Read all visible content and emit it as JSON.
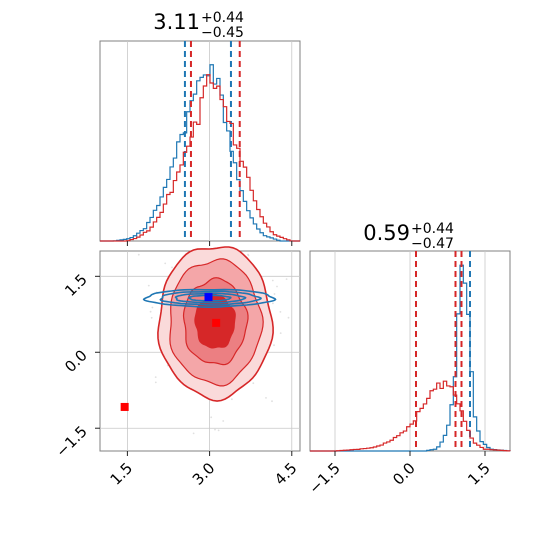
{
  "chart_data": [
    {
      "type": "histogram",
      "panel": "marginal-top-left",
      "title_value": "3.11",
      "title_plus": "+0.44",
      "title_minus": "−0.45",
      "xlim": [
        1.0,
        4.65
      ],
      "xticks": [
        1.5,
        3.0,
        4.5
      ],
      "grid": true,
      "series": [
        {
          "color": "#1f77b4",
          "x": [
            1.0,
            1.25,
            1.5,
            1.6,
            1.7,
            1.8,
            1.9,
            2.0,
            2.1,
            2.2,
            2.3,
            2.4,
            2.5,
            2.6,
            2.7,
            2.8,
            2.9,
            3.0,
            3.1,
            3.2,
            3.3,
            3.4,
            3.5,
            3.6,
            3.7,
            3.8,
            3.9,
            4.0,
            4.1,
            4.2,
            4.3,
            4.5,
            4.65
          ],
          "density": [
            0.0,
            0.0,
            0.01,
            0.02,
            0.04,
            0.06,
            0.1,
            0.16,
            0.22,
            0.3,
            0.4,
            0.48,
            0.55,
            0.68,
            0.74,
            0.83,
            0.92,
            0.94,
            0.88,
            0.78,
            0.64,
            0.5,
            0.37,
            0.25,
            0.16,
            0.1,
            0.06,
            0.03,
            0.02,
            0.01,
            0.0,
            0.0,
            0.0
          ],
          "quantile_lines": [
            2.55,
            3.39
          ]
        },
        {
          "color": "#d62728",
          "x": [
            1.0,
            1.25,
            1.5,
            1.6,
            1.7,
            1.8,
            1.9,
            2.0,
            2.1,
            2.2,
            2.3,
            2.4,
            2.5,
            2.6,
            2.7,
            2.8,
            2.9,
            3.0,
            3.1,
            3.2,
            3.3,
            3.4,
            3.5,
            3.6,
            3.7,
            3.8,
            3.9,
            4.0,
            4.1,
            4.2,
            4.3,
            4.5,
            4.65
          ],
          "density": [
            0.0,
            0.0,
            0.0,
            0.01,
            0.02,
            0.04,
            0.06,
            0.1,
            0.14,
            0.2,
            0.27,
            0.34,
            0.42,
            0.5,
            0.58,
            0.66,
            0.78,
            0.85,
            0.86,
            0.8,
            0.72,
            0.62,
            0.5,
            0.42,
            0.34,
            0.24,
            0.16,
            0.1,
            0.06,
            0.03,
            0.02,
            0.0,
            0.0
          ],
          "quantile_lines": [
            2.66,
            3.55
          ]
        }
      ]
    },
    {
      "type": "histogram",
      "panel": "marginal-bottom-right",
      "title_value": "0.59",
      "title_plus": "+0.44",
      "title_minus": "−0.47",
      "xlim": [
        -2.0,
        2.0
      ],
      "xticks": [
        -1.5,
        0.0,
        1.5
      ],
      "xtick_labels": [
        "−1.5",
        "0.0",
        "1.5"
      ],
      "grid": true,
      "series": [
        {
          "color": "#1f77b4",
          "x": [
            -2.0,
            0.0,
            0.3,
            0.5,
            0.6,
            0.7,
            0.8,
            0.85,
            0.9,
            0.95,
            1.0,
            1.05,
            1.1,
            1.15,
            1.2,
            1.25,
            1.3,
            1.4,
            1.6,
            2.0
          ],
          "density": [
            0.0,
            0.0,
            0.0,
            0.01,
            0.03,
            0.08,
            0.16,
            0.28,
            0.42,
            0.62,
            0.84,
            1.0,
            0.95,
            0.8,
            0.58,
            0.36,
            0.18,
            0.06,
            0.01,
            0.0
          ],
          "quantile_lines": [
            0.91,
            1.2
          ]
        },
        {
          "color": "#d62728",
          "x": [
            -2.0,
            -1.5,
            -1.0,
            -0.7,
            -0.5,
            -0.3,
            -0.1,
            0.1,
            0.3,
            0.5,
            0.7,
            0.9,
            1.0,
            1.1,
            1.2,
            1.3,
            1.5,
            2.0
          ],
          "density": [
            0.0,
            0.0,
            0.01,
            0.02,
            0.04,
            0.07,
            0.11,
            0.17,
            0.25,
            0.33,
            0.36,
            0.3,
            0.24,
            0.16,
            0.09,
            0.04,
            0.01,
            0.0
          ],
          "quantile_lines": [
            0.12,
            0.91,
            1.03
          ]
        }
      ]
    },
    {
      "type": "contour",
      "panel": "joint-bottom-left",
      "xlim": [
        1.0,
        4.65
      ],
      "ylim": [
        -1.95,
        2.0
      ],
      "xticks": [
        1.5,
        3.0,
        4.5
      ],
      "yticks": [
        -1.5,
        0.0,
        1.5
      ],
      "ytick_labels": [
        "−1.5",
        "0.0",
        "1.5"
      ],
      "grid": true,
      "red_center": [
        3.1,
        0.6
      ],
      "red_spread": [
        0.48,
        0.7
      ],
      "blue_center": [
        3.0,
        1.07
      ],
      "blue_spread": [
        0.9,
        0.12
      ],
      "markers": [
        {
          "x": 2.98,
          "y": 1.09,
          "color": "#0000ff"
        },
        {
          "x": 3.12,
          "y": 0.58,
          "color": "#ff0000"
        },
        {
          "x": 1.45,
          "y": -1.08,
          "color": "#ff0000"
        }
      ]
    }
  ],
  "colors": {
    "blue": "#1f77b4",
    "red": "#d62728",
    "red_fill_light": "#f4a6a8",
    "red_fill_dark": "#d62728",
    "marker_blue": "#0000ff",
    "marker_red": "#ff0000"
  }
}
